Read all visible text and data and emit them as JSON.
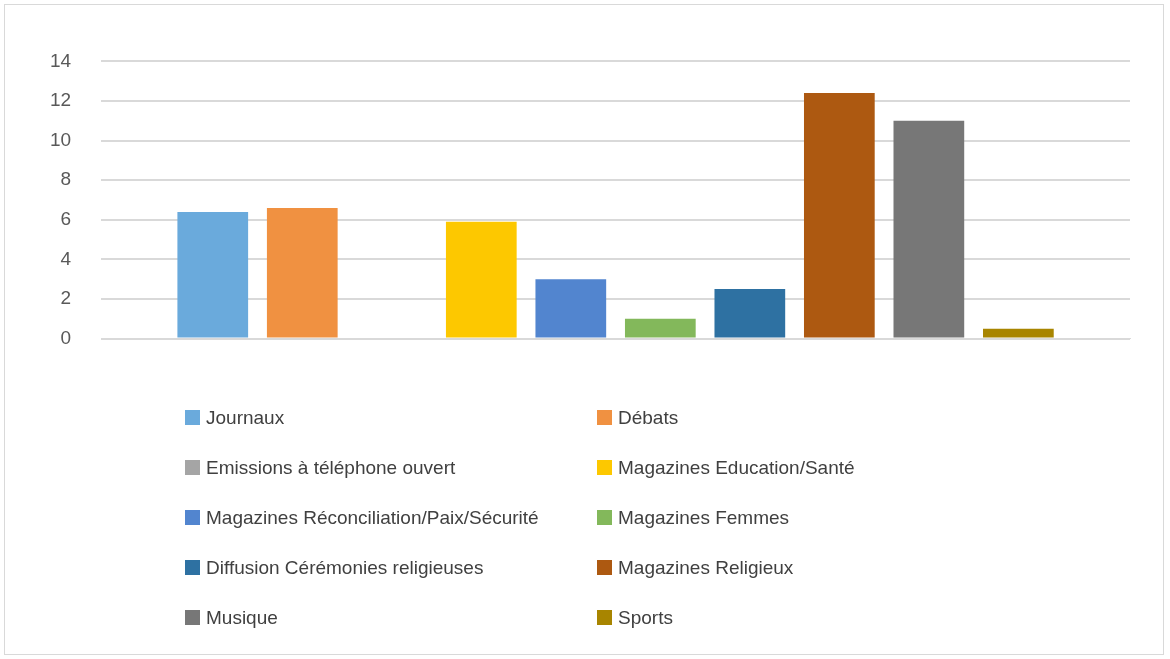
{
  "chart_data": {
    "type": "bar",
    "categories": [
      null
    ],
    "series": [
      {
        "name": "Journaux",
        "color": "#6aaadc",
        "values": [
          6.4
        ]
      },
      {
        "name": "Débats",
        "color": "#f09141",
        "values": [
          6.6
        ]
      },
      {
        "name": "Emissions à téléphone ouvert",
        "color": "#a5a5a5",
        "values": [
          0
        ]
      },
      {
        "name": "Magazines Education/Santé",
        "color": "#fdc800",
        "values": [
          5.9
        ]
      },
      {
        "name": "Magazines Réconciliation/Paix/Sécurité",
        "color": "#5285cf",
        "values": [
          3.0
        ]
      },
      {
        "name": "Magazines Femmes",
        "color": "#83b85b",
        "values": [
          1.0
        ]
      },
      {
        "name": "Diffusion Cérémonies religieuses",
        "color": "#2e71a2",
        "values": [
          2.5
        ]
      },
      {
        "name": "Magazines Religieux",
        "color": "#ad5911",
        "values": [
          12.4
        ]
      },
      {
        "name": "Musique",
        "color": "#777777",
        "values": [
          11.0
        ]
      },
      {
        "name": "Sports",
        "color": "#a88500",
        "values": [
          0.5
        ]
      }
    ],
    "ylim": [
      0,
      14
    ],
    "yticks": [
      0,
      2,
      4,
      6,
      8,
      10,
      12,
      14
    ],
    "grid": "y",
    "legend": "bottom"
  }
}
